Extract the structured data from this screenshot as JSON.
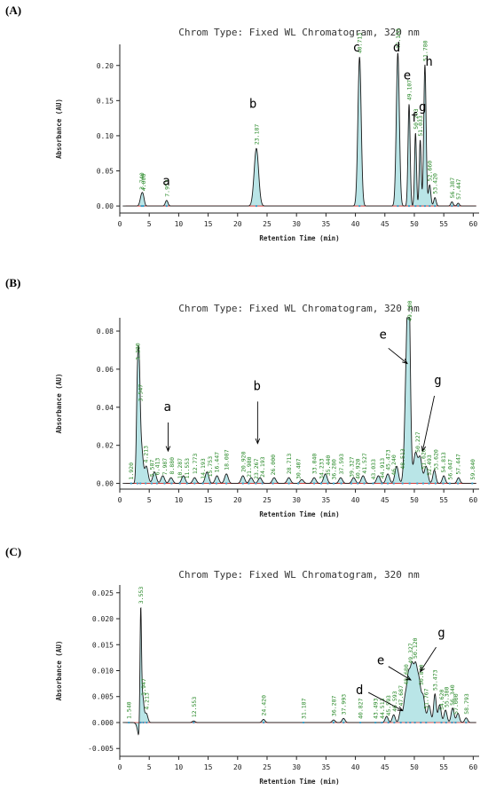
{
  "panels": [
    {
      "label": "(A)",
      "chart_data": {
        "type": "line",
        "title": "Chrom Type: Fixed WL Chromatogram, 320 nm",
        "xlabel": "Retention Time (min)",
        "ylabel": "Absorbance (AU)",
        "xlim": [
          0,
          61
        ],
        "ylim": [
          -0.01,
          0.23
        ],
        "xticks": [
          0,
          5,
          10,
          15,
          20,
          25,
          30,
          35,
          40,
          45,
          50,
          55,
          60
        ],
        "yticks": [
          0.0,
          0.05,
          0.1,
          0.15,
          0.2
        ],
        "ytick_format": 2,
        "baseline": 0.0,
        "peaks": [
          {
            "rt": 3.7,
            "h": 0.015,
            "w": 0.25
          },
          {
            "rt": 4.0,
            "h": 0.009,
            "w": 0.2
          },
          {
            "rt": 7.953,
            "h": 0.008,
            "w": 0.22
          },
          {
            "rt": 23.187,
            "h": 0.082,
            "w": 0.38
          },
          {
            "rt": 40.7,
            "h": 0.212,
            "w": 0.28
          },
          {
            "rt": 47.2,
            "h": 0.218,
            "w": 0.26
          },
          {
            "rt": 49.107,
            "h": 0.145,
            "w": 0.18
          },
          {
            "rt": 50.2,
            "h": 0.104,
            "w": 0.16
          },
          {
            "rt": 51.0,
            "h": 0.094,
            "w": 0.16
          },
          {
            "rt": 51.8,
            "h": 0.201,
            "w": 0.2
          },
          {
            "rt": 52.6,
            "h": 0.03,
            "w": 0.2
          },
          {
            "rt": 53.5,
            "h": 0.012,
            "w": 0.2
          },
          {
            "rt": 56.387,
            "h": 0.006,
            "w": 0.2
          },
          {
            "rt": 57.447,
            "h": 0.004,
            "w": 0.2
          }
        ],
        "peak_labels": [
          {
            "rt": 3.7,
            "text": "3.740"
          },
          {
            "rt": 4.0,
            "text": "4.000"
          },
          {
            "rt": 7.953,
            "text": "7.953"
          },
          {
            "rt": 23.187,
            "text": "23.187"
          },
          {
            "rt": 40.7,
            "text": "40.713"
          },
          {
            "rt": 47.2,
            "text": "47.153"
          },
          {
            "rt": 49.107,
            "text": "49.107"
          },
          {
            "rt": 50.2,
            "text": "50.273"
          },
          {
            "rt": 51.0,
            "text": "51.033"
          },
          {
            "rt": 51.8,
            "text": "51.780"
          },
          {
            "rt": 52.6,
            "text": "52.660"
          },
          {
            "rt": 53.5,
            "text": "53.420"
          },
          {
            "rt": 56.387,
            "text": "56.387"
          },
          {
            "rt": 57.447,
            "text": "57.447"
          }
        ],
        "annotations": [
          {
            "text": "a",
            "x": 7.9,
            "y": 0.03
          },
          {
            "text": "b",
            "x": 22.6,
            "y": 0.14
          },
          {
            "text": "c",
            "x": 40.2,
            "y": 0.22
          },
          {
            "text": "d",
            "x": 47.0,
            "y": 0.22
          },
          {
            "text": "e",
            "x": 48.8,
            "y": 0.18
          },
          {
            "text": "f",
            "x": 50.0,
            "y": 0.12
          },
          {
            "text": "g",
            "x": 51.4,
            "y": 0.135
          },
          {
            "text": "h",
            "x": 52.5,
            "y": 0.2
          }
        ],
        "arrows": []
      }
    },
    {
      "label": "(B)",
      "chart_data": {
        "type": "line",
        "title": "Chrom Type: Fixed WL Chromatogram, 320 nm",
        "xlabel": "Retention Time (min)",
        "ylabel": "Absorbance (AU)",
        "xlim": [
          0,
          61
        ],
        "ylim": [
          -0.003,
          0.087
        ],
        "xticks": [
          0,
          5,
          10,
          15,
          20,
          25,
          30,
          35,
          40,
          45,
          50,
          55,
          60
        ],
        "yticks": [
          0.0,
          0.02,
          0.04,
          0.06,
          0.08
        ],
        "ytick_format": 2,
        "baseline": 0.0,
        "peaks": [
          {
            "rt": 3.0,
            "h": 0.05,
            "w": 0.18
          },
          {
            "rt": 3.3,
            "h": 0.05,
            "w": 0.18
          },
          {
            "rt": 3.7,
            "h": 0.018,
            "w": 0.25
          },
          {
            "rt": 4.5,
            "h": 0.009,
            "w": 0.3
          },
          {
            "rt": 5.9,
            "h": 0.006,
            "w": 0.3
          },
          {
            "rt": 7.3,
            "h": 0.004,
            "w": 0.3
          },
          {
            "rt": 8.7,
            "h": 0.003,
            "w": 0.3
          },
          {
            "rt": 10.8,
            "h": 0.004,
            "w": 0.3
          },
          {
            "rt": 12.7,
            "h": 0.003,
            "w": 0.3
          },
          {
            "rt": 14.8,
            "h": 0.006,
            "w": 0.3
          },
          {
            "rt": 16.5,
            "h": 0.004,
            "w": 0.3
          },
          {
            "rt": 18.1,
            "h": 0.005,
            "w": 0.3
          },
          {
            "rt": 20.9,
            "h": 0.004,
            "w": 0.3
          },
          {
            "rt": 22.3,
            "h": 0.003,
            "w": 0.3
          },
          {
            "rt": 23.8,
            "h": 0.003,
            "w": 0.3
          },
          {
            "rt": 26.2,
            "h": 0.003,
            "w": 0.3
          },
          {
            "rt": 28.7,
            "h": 0.003,
            "w": 0.3
          },
          {
            "rt": 30.9,
            "h": 0.002,
            "w": 0.3
          },
          {
            "rt": 33.0,
            "h": 0.003,
            "w": 0.3
          },
          {
            "rt": 34.9,
            "h": 0.005,
            "w": 0.3
          },
          {
            "rt": 37.5,
            "h": 0.003,
            "w": 0.3
          },
          {
            "rt": 39.7,
            "h": 0.003,
            "w": 0.3
          },
          {
            "rt": 41.3,
            "h": 0.004,
            "w": 0.3
          },
          {
            "rt": 43.9,
            "h": 0.004,
            "w": 0.3
          },
          {
            "rt": 45.5,
            "h": 0.005,
            "w": 0.3
          },
          {
            "rt": 47.0,
            "h": 0.009,
            "w": 0.3
          },
          {
            "rt": 48.7,
            "h": 0.06,
            "w": 0.32
          },
          {
            "rt": 49.1,
            "h": 0.081,
            "w": 0.25
          },
          {
            "rt": 50.2,
            "h": 0.016,
            "w": 0.35
          },
          {
            "rt": 51.0,
            "h": 0.013,
            "w": 0.3
          },
          {
            "rt": 52.0,
            "h": 0.009,
            "w": 0.3
          },
          {
            "rt": 53.4,
            "h": 0.007,
            "w": 0.25
          },
          {
            "rt": 55.0,
            "h": 0.004,
            "w": 0.25
          },
          {
            "rt": 57.5,
            "h": 0.003,
            "w": 0.25
          }
        ],
        "peak_labels": [
          {
            "rt": 1.92,
            "text": "1.920"
          },
          {
            "rt": 3.0,
            "text": "3.280"
          },
          {
            "rt": 3.5,
            "text": "3.547"
          },
          {
            "rt": 4.4,
            "text": "4.213"
          },
          {
            "rt": 5.4,
            "text": "5.587"
          },
          {
            "rt": 6.3,
            "text": "6.413"
          },
          {
            "rt": 7.6,
            "text": "7.987"
          },
          {
            "rt": 8.8,
            "text": "8.880"
          },
          {
            "rt": 10.2,
            "text": "10.287"
          },
          {
            "rt": 11.4,
            "text": "11.553"
          },
          {
            "rt": 12.7,
            "text": "12.773"
          },
          {
            "rt": 14.1,
            "text": "14.193"
          },
          {
            "rt": 15.3,
            "text": "15.753"
          },
          {
            "rt": 16.4,
            "text": "16.447"
          },
          {
            "rt": 18.1,
            "text": "18.087"
          },
          {
            "rt": 20.9,
            "text": "20.920"
          },
          {
            "rt": 21.9,
            "text": "21.980"
          },
          {
            "rt": 23.1,
            "text": "23.267"
          },
          {
            "rt": 24.2,
            "text": "24.193"
          },
          {
            "rt": 26.0,
            "text": "26.000"
          },
          {
            "rt": 28.7,
            "text": "28.713"
          },
          {
            "rt": 30.3,
            "text": "30.407"
          },
          {
            "rt": 33.0,
            "text": "33.040"
          },
          {
            "rt": 34.2,
            "text": "34.233"
          },
          {
            "rt": 35.3,
            "text": "35.440"
          },
          {
            "rt": 36.3,
            "text": "36.280"
          },
          {
            "rt": 37.6,
            "text": "37.593"
          },
          {
            "rt": 39.3,
            "text": "39.327"
          },
          {
            "rt": 40.4,
            "text": "40.920"
          },
          {
            "rt": 41.5,
            "text": "41.527"
          },
          {
            "rt": 43.0,
            "text": "43.033"
          },
          {
            "rt": 44.5,
            "text": "44.913"
          },
          {
            "rt": 45.5,
            "text": "45.473"
          },
          {
            "rt": 46.5,
            "text": "46.240"
          },
          {
            "rt": 48.0,
            "text": "48.513"
          },
          {
            "rt": 49.2,
            "text": "49.100"
          },
          {
            "rt": 50.5,
            "text": "50.227"
          },
          {
            "rt": 51.5,
            "text": "51.620"
          },
          {
            "rt": 52.5,
            "text": "52.493"
          },
          {
            "rt": 53.6,
            "text": "53.620"
          },
          {
            "rt": 54.9,
            "text": "54.813"
          },
          {
            "rt": 56.0,
            "text": "56.047"
          },
          {
            "rt": 57.4,
            "text": "57.447"
          },
          {
            "rt": 59.84,
            "text": "59.840"
          }
        ],
        "annotations": [
          {
            "text": "a",
            "x": 8.1,
            "y": 0.038
          },
          {
            "text": "b",
            "x": 23.3,
            "y": 0.049
          },
          {
            "text": "e",
            "x": 44.7,
            "y": 0.076
          },
          {
            "text": "g",
            "x": 54.0,
            "y": 0.052
          }
        ],
        "arrows": [
          {
            "from": [
              8.2,
              0.032
            ],
            "to": [
              8.2,
              0.017
            ]
          },
          {
            "from": [
              23.4,
              0.043
            ],
            "to": [
              23.4,
              0.021
            ]
          },
          {
            "from": [
              45.6,
              0.071
            ],
            "to": [
              48.8,
              0.063
            ]
          },
          {
            "from": [
              53.4,
              0.046
            ],
            "to": [
              51.4,
              0.017
            ]
          }
        ]
      }
    },
    {
      "label": "(C)",
      "chart_data": {
        "type": "line",
        "title": "Chrom Type: Fixed WL Chromatogram, 320 nm",
        "xlabel": "Retention Time (min)",
        "ylabel": "Absorbance (AU)",
        "xlim": [
          0,
          61
        ],
        "ylim": [
          -0.0065,
          0.0265
        ],
        "xticks": [
          0,
          5,
          10,
          15,
          20,
          25,
          30,
          35,
          40,
          45,
          50,
          55,
          60
        ],
        "yticks": [
          -0.005,
          0.0,
          0.005,
          0.01,
          0.015,
          0.02,
          0.025
        ],
        "ytick_format": 3,
        "baseline": 0.0,
        "dips": [
          {
            "rt": 3.5,
            "h": -0.0042,
            "w": 0.35
          }
        ],
        "peaks": [
          {
            "rt": 3.55,
            "h": 0.0235,
            "w": 0.13
          },
          {
            "rt": 3.85,
            "h": 0.0072,
            "w": 0.22
          },
          {
            "rt": 4.5,
            "h": 0.0018,
            "w": 0.25
          },
          {
            "rt": 12.55,
            "h": 0.0003,
            "w": 0.25
          },
          {
            "rt": 24.4,
            "h": 0.0006,
            "w": 0.25
          },
          {
            "rt": 36.3,
            "h": 0.0005,
            "w": 0.25
          },
          {
            "rt": 37.99,
            "h": 0.0008,
            "w": 0.25
          },
          {
            "rt": 45.3,
            "h": 0.0012,
            "w": 0.25
          },
          {
            "rt": 46.5,
            "h": 0.0015,
            "w": 0.25
          },
          {
            "rt": 47.7,
            "h": 0.0024,
            "w": 0.25
          },
          {
            "rt": 48.4,
            "h": 0.004,
            "w": 0.25
          },
          {
            "rt": 49.0,
            "h": 0.0088,
            "w": 0.3
          },
          {
            "rt": 49.6,
            "h": 0.0092,
            "w": 0.28
          },
          {
            "rt": 50.2,
            "h": 0.0098,
            "w": 0.3
          },
          {
            "rt": 50.8,
            "h": 0.0072,
            "w": 0.3
          },
          {
            "rt": 51.5,
            "h": 0.0049,
            "w": 0.3
          },
          {
            "rt": 52.5,
            "h": 0.0033,
            "w": 0.28
          },
          {
            "rt": 53.5,
            "h": 0.0055,
            "w": 0.22
          },
          {
            "rt": 54.3,
            "h": 0.0034,
            "w": 0.25
          },
          {
            "rt": 55.3,
            "h": 0.0024,
            "w": 0.25
          },
          {
            "rt": 56.5,
            "h": 0.0028,
            "w": 0.25
          },
          {
            "rt": 57.4,
            "h": 0.0018,
            "w": 0.25
          },
          {
            "rt": 58.8,
            "h": 0.0009,
            "w": 0.25
          }
        ],
        "peak_labels": [
          {
            "rt": 1.54,
            "text": "1.540"
          },
          {
            "rt": 3.55,
            "text": "3.553"
          },
          {
            "rt": 4.0,
            "text": "3.947"
          },
          {
            "rt": 4.55,
            "text": "4.213"
          },
          {
            "rt": 12.553,
            "text": "12.553"
          },
          {
            "rt": 24.42,
            "text": "24.420"
          },
          {
            "rt": 31.187,
            "text": "31.187"
          },
          {
            "rt": 36.287,
            "text": "36.287"
          },
          {
            "rt": 37.993,
            "text": "37.993"
          },
          {
            "rt": 40.827,
            "text": "40.827"
          },
          {
            "rt": 43.4,
            "text": "43.493"
          },
          {
            "rt": 44.5,
            "text": "44.513"
          },
          {
            "rt": 45.6,
            "text": "45.593"
          },
          {
            "rt": 46.6,
            "text": "46.593"
          },
          {
            "rt": 47.7,
            "text": "47.687"
          },
          {
            "rt": 48.6,
            "text": "48.680"
          },
          {
            "rt": 49.3,
            "text": "49.327"
          },
          {
            "rt": 50.1,
            "text": "50.120"
          },
          {
            "rt": 51.1,
            "text": "50.840"
          },
          {
            "rt": 52.0,
            "text": "51.767"
          },
          {
            "rt": 53.473,
            "text": "53.473"
          },
          {
            "rt": 54.6,
            "text": "54.620"
          },
          {
            "rt": 55.4,
            "text": "55.380"
          },
          {
            "rt": 56.4,
            "text": "56.340"
          },
          {
            "rt": 57.0,
            "text": "57.000"
          },
          {
            "rt": 58.793,
            "text": "58.793"
          }
        ],
        "annotations": [
          {
            "text": "d",
            "x": 40.7,
            "y": 0.0055
          },
          {
            "text": "e",
            "x": 44.3,
            "y": 0.0112
          },
          {
            "text": "g",
            "x": 54.6,
            "y": 0.0165
          }
        ],
        "arrows": [
          {
            "from": [
              42.2,
              0.0058
            ],
            "to": [
              48.0,
              0.0023
            ]
          },
          {
            "from": [
              45.6,
              0.0108
            ],
            "to": [
              49.4,
              0.0082
            ]
          },
          {
            "from": [
              53.7,
              0.0145
            ],
            "to": [
              51.0,
              0.0098
            ]
          }
        ]
      }
    }
  ],
  "colors": {
    "trace": "#1a1a1a",
    "fill": "#7fd0d4",
    "baseline": "#d42020",
    "peak_label": "#2a8a2a",
    "axis": "#222222",
    "marker": "#3aa0c8"
  }
}
